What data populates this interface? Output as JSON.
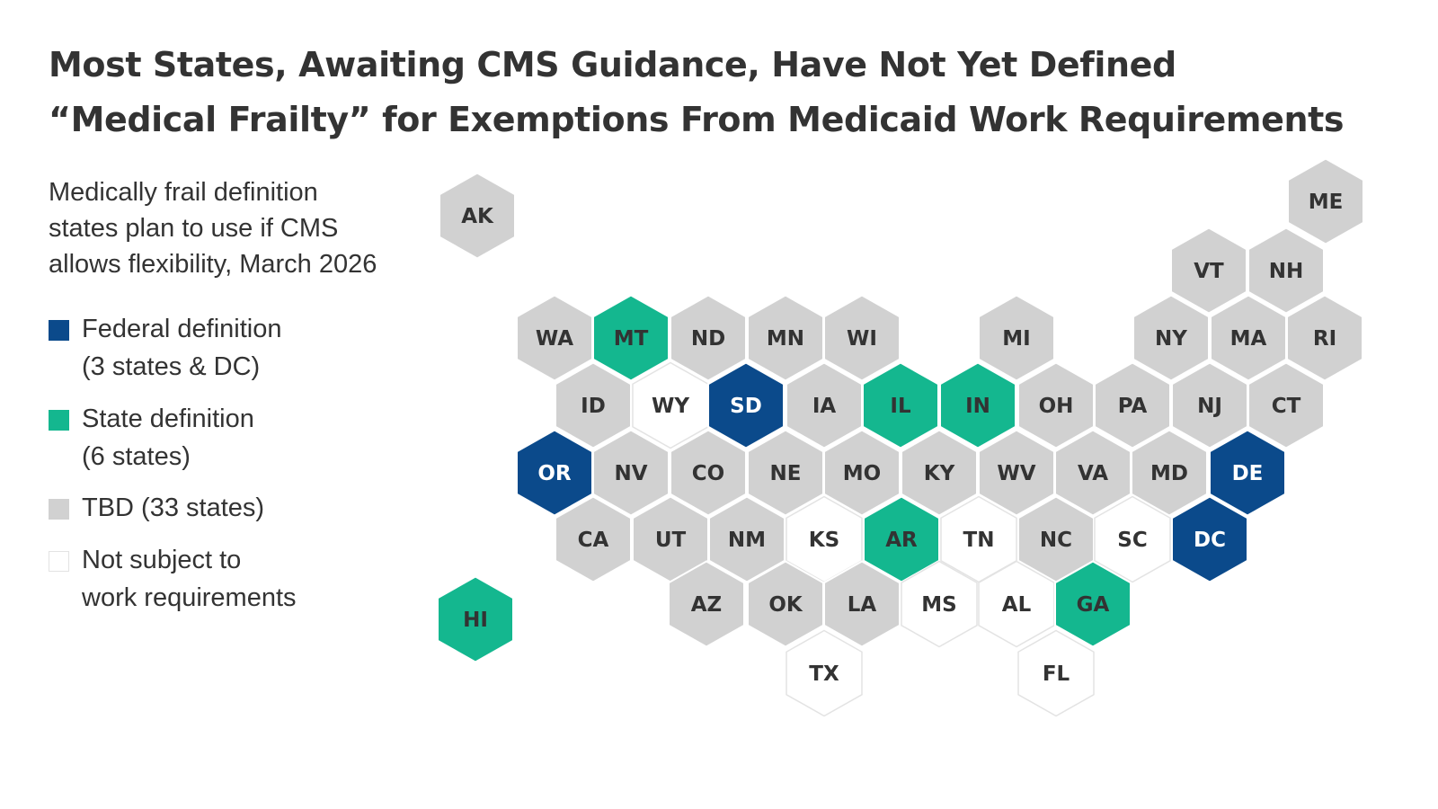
{
  "title": {
    "line1": "Most States, Awaiting CMS Guidance, Have Not Yet Defined",
    "line2": "“Medical Frailty” for Exemptions From Medicaid Work Requirements"
  },
  "subtitle": {
    "line1": "Medically frail definition",
    "line2": "states plan to use if CMS",
    "line3": "allows flexibility, March 2026"
  },
  "legend": [
    {
      "key": "federal",
      "line1": "Federal definition",
      "line2": "(3 states & DC)"
    },
    {
      "key": "state",
      "line1": "State definition",
      "line2": "(6 states)"
    },
    {
      "key": "tbd",
      "line1": "TBD (33 states)",
      "line2": ""
    },
    {
      "key": "not_subject",
      "line1": "Not subject to",
      "line2": "work requirements"
    }
  ],
  "colors": {
    "federal": "#0b4a8b",
    "state": "#14b78f",
    "tbd": "#d1d1d1",
    "not_subject": "#ffffff",
    "not_subject_border": "#e3e3e3",
    "label_dark": "#333333",
    "label_light": "#ffffff"
  },
  "states": [
    {
      "abbr": "AK",
      "category": "tbd"
    },
    {
      "abbr": "HI",
      "category": "state"
    },
    {
      "abbr": "ME",
      "category": "tbd"
    },
    {
      "abbr": "VT",
      "category": "tbd"
    },
    {
      "abbr": "NH",
      "category": "tbd"
    },
    {
      "abbr": "WA",
      "category": "tbd"
    },
    {
      "abbr": "MT",
      "category": "state"
    },
    {
      "abbr": "ND",
      "category": "tbd"
    },
    {
      "abbr": "MN",
      "category": "tbd"
    },
    {
      "abbr": "WI",
      "category": "tbd"
    },
    {
      "abbr": "MI",
      "category": "tbd"
    },
    {
      "abbr": "NY",
      "category": "tbd"
    },
    {
      "abbr": "MA",
      "category": "tbd"
    },
    {
      "abbr": "RI",
      "category": "tbd"
    },
    {
      "abbr": "ID",
      "category": "tbd"
    },
    {
      "abbr": "WY",
      "category": "not_subject"
    },
    {
      "abbr": "SD",
      "category": "federal"
    },
    {
      "abbr": "IA",
      "category": "tbd"
    },
    {
      "abbr": "IL",
      "category": "state"
    },
    {
      "abbr": "IN",
      "category": "state"
    },
    {
      "abbr": "OH",
      "category": "tbd"
    },
    {
      "abbr": "PA",
      "category": "tbd"
    },
    {
      "abbr": "NJ",
      "category": "tbd"
    },
    {
      "abbr": "CT",
      "category": "tbd"
    },
    {
      "abbr": "OR",
      "category": "federal"
    },
    {
      "abbr": "NV",
      "category": "tbd"
    },
    {
      "abbr": "CO",
      "category": "tbd"
    },
    {
      "abbr": "NE",
      "category": "tbd"
    },
    {
      "abbr": "MO",
      "category": "tbd"
    },
    {
      "abbr": "KY",
      "category": "tbd"
    },
    {
      "abbr": "WV",
      "category": "tbd"
    },
    {
      "abbr": "VA",
      "category": "tbd"
    },
    {
      "abbr": "MD",
      "category": "tbd"
    },
    {
      "abbr": "DE",
      "category": "federal"
    },
    {
      "abbr": "CA",
      "category": "tbd"
    },
    {
      "abbr": "UT",
      "category": "tbd"
    },
    {
      "abbr": "NM",
      "category": "tbd"
    },
    {
      "abbr": "KS",
      "category": "not_subject"
    },
    {
      "abbr": "AR",
      "category": "state"
    },
    {
      "abbr": "TN",
      "category": "not_subject"
    },
    {
      "abbr": "NC",
      "category": "tbd"
    },
    {
      "abbr": "SC",
      "category": "not_subject"
    },
    {
      "abbr": "DC",
      "category": "federal"
    },
    {
      "abbr": "AZ",
      "category": "tbd"
    },
    {
      "abbr": "OK",
      "category": "tbd"
    },
    {
      "abbr": "LA",
      "category": "tbd"
    },
    {
      "abbr": "MS",
      "category": "not_subject"
    },
    {
      "abbr": "AL",
      "category": "not_subject"
    },
    {
      "abbr": "GA",
      "category": "state"
    },
    {
      "abbr": "TX",
      "category": "not_subject"
    },
    {
      "abbr": "FL",
      "category": "not_subject"
    }
  ]
}
